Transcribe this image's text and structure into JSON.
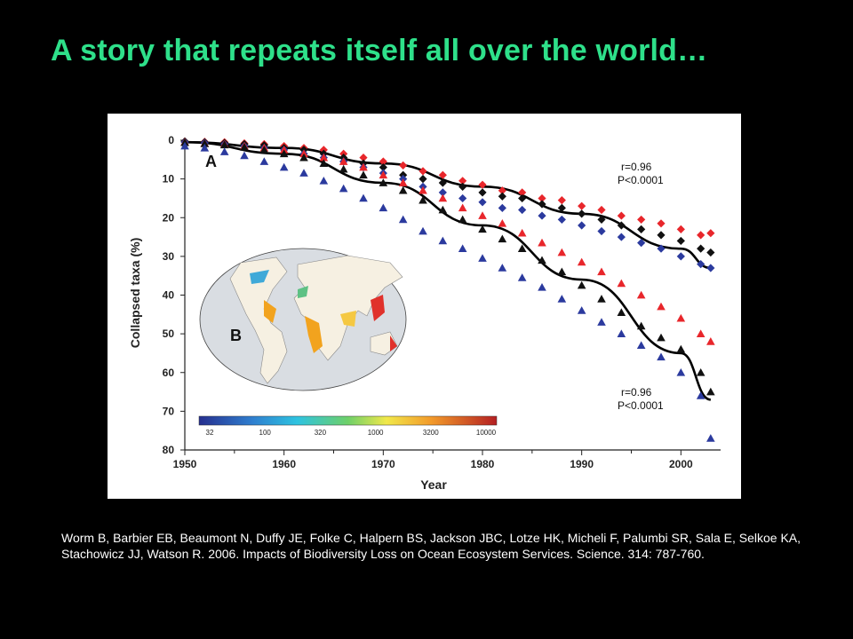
{
  "slide": {
    "title": "A story that repeats itself all over the world…",
    "citation": "Worm B, Barbier EB, Beaumont N, Duffy JE, Folke C, Halpern BS, Jackson JBC, Lotze HK, Micheli F, Palumbi SR, Sala E, Selkoe KA, Stachowicz JJ, Watson R. 2006. Impacts of Biodiversity Loss on Ocean Ecosystem Services. Science. 314: 787-760."
  },
  "chart_data": {
    "type": "scatter",
    "panel_a_label": "A",
    "panel_b_label": "B",
    "xlabel": "Year",
    "ylabel": "Collapsed taxa (%)",
    "xlim": [
      1950,
      2004
    ],
    "ylim": [
      0,
      80
    ],
    "y_inverted": true,
    "xticks": [
      1950,
      1960,
      1970,
      1980,
      1990,
      2000
    ],
    "yticks": [
      0,
      10,
      20,
      30,
      40,
      50,
      60,
      70,
      80
    ],
    "colors": {
      "red": "#e8262b",
      "black": "#111111",
      "blue": "#2b3a9e"
    },
    "stats": [
      {
        "r": "r=0.96",
        "p": "P<0.0001",
        "for": "upper"
      },
      {
        "r": "r=0.96",
        "p": "P<0.0001",
        "for": "lower"
      }
    ],
    "colorbar_ticks": [
      "32",
      "100",
      "320",
      "1000",
      "3200",
      "10000"
    ],
    "series": [
      {
        "marker": "diamond",
        "color": "red",
        "x": [
          1950,
          1952,
          1954,
          1956,
          1958,
          1960,
          1962,
          1964,
          1966,
          1968,
          1970,
          1972,
          1974,
          1976,
          1978,
          1980,
          1982,
          1984,
          1986,
          1988,
          1990,
          1992,
          1994,
          1996,
          1998,
          2000,
          2002,
          2003
        ],
        "y": [
          0.3,
          0.4,
          0.5,
          0.8,
          1,
          1.5,
          2,
          2.5,
          3.5,
          4.5,
          5.5,
          6.5,
          8,
          9,
          10.5,
          11.5,
          13,
          13.5,
          15,
          15.5,
          17,
          18,
          19.5,
          20.5,
          21.5,
          23,
          24.5,
          24
        ]
      },
      {
        "marker": "diamond",
        "color": "black",
        "x": [
          1950,
          1952,
          1954,
          1956,
          1958,
          1960,
          1962,
          1964,
          1966,
          1968,
          1970,
          1972,
          1974,
          1976,
          1978,
          1980,
          1982,
          1984,
          1986,
          1988,
          1990,
          1992,
          1994,
          1996,
          1998,
          2000,
          2002,
          2003
        ],
        "y": [
          0.3,
          0.5,
          0.7,
          1,
          1.3,
          2,
          2.5,
          3.5,
          4.5,
          6,
          7,
          9,
          10,
          11,
          12,
          13.5,
          14.5,
          15,
          16.5,
          17.5,
          19,
          20.5,
          22,
          23,
          24.5,
          26,
          28,
          29
        ]
      },
      {
        "marker": "diamond",
        "color": "blue",
        "x": [
          1950,
          1952,
          1954,
          1956,
          1958,
          1960,
          1962,
          1964,
          1966,
          1968,
          1970,
          1972,
          1974,
          1976,
          1978,
          1980,
          1982,
          1984,
          1986,
          1988,
          1990,
          1992,
          1994,
          1996,
          1998,
          2000,
          2002,
          2003
        ],
        "y": [
          0.5,
          0.7,
          1,
          1.5,
          2,
          2.5,
          3.5,
          4.5,
          5.5,
          7,
          8.5,
          10,
          12,
          13.5,
          15,
          16,
          17.5,
          18,
          19.5,
          20.5,
          22,
          23.5,
          25,
          26.5,
          28,
          30,
          32,
          33
        ]
      },
      {
        "marker": "triangle",
        "color": "red",
        "x": [
          1950,
          1952,
          1954,
          1956,
          1958,
          1960,
          1962,
          1964,
          1966,
          1968,
          1970,
          1972,
          1974,
          1976,
          1978,
          1980,
          1982,
          1984,
          1986,
          1988,
          1990,
          1992,
          1994,
          1996,
          1998,
          2000,
          2002,
          2003
        ],
        "y": [
          0.5,
          0.8,
          1,
          1.5,
          2,
          2.5,
          3.5,
          4.5,
          5.5,
          7,
          9,
          11,
          13,
          15,
          17.5,
          19.5,
          21.5,
          24,
          26.5,
          29,
          31.5,
          34,
          37,
          40,
          43,
          46,
          50,
          52
        ]
      },
      {
        "marker": "triangle",
        "color": "black",
        "x": [
          1950,
          1952,
          1954,
          1956,
          1958,
          1960,
          1962,
          1964,
          1966,
          1968,
          1970,
          1972,
          1974,
          1976,
          1978,
          1980,
          1982,
          1984,
          1986,
          1988,
          1990,
          1992,
          1994,
          1996,
          1998,
          2000,
          2002,
          2003
        ],
        "y": [
          0.6,
          0.9,
          1.2,
          1.8,
          2.5,
          3.5,
          4.5,
          6,
          7.5,
          9,
          11,
          13,
          15.5,
          18,
          20.5,
          23,
          25.5,
          28,
          31,
          34,
          37.5,
          41,
          44.5,
          48,
          51,
          54,
          60,
          65
        ]
      },
      {
        "marker": "triangle",
        "color": "blue",
        "x": [
          1950,
          1952,
          1954,
          1956,
          1958,
          1960,
          1962,
          1964,
          1966,
          1968,
          1970,
          1972,
          1974,
          1976,
          1978,
          1980,
          1982,
          1984,
          1986,
          1988,
          1990,
          1992,
          1994,
          1996,
          1998,
          2000,
          2002,
          2003
        ],
        "y": [
          1.5,
          2,
          3,
          4,
          5.5,
          7,
          8.5,
          10.5,
          12.5,
          15,
          17.5,
          20.5,
          23.5,
          26,
          28,
          30.5,
          33,
          35.5,
          38,
          41,
          44,
          47,
          50,
          53,
          56,
          60,
          66,
          77
        ]
      }
    ],
    "fit_lines": [
      {
        "x": [
          1950,
          1960,
          1970,
          1980,
          1990,
          2000,
          2003
        ],
        "y": [
          0.5,
          2,
          6,
          12,
          19,
          28,
          33
        ]
      },
      {
        "x": [
          1950,
          1960,
          1970,
          1980,
          1990,
          2000,
          2003
        ],
        "y": [
          0.5,
          3.5,
          11,
          22,
          36,
          55,
          67
        ]
      }
    ]
  }
}
